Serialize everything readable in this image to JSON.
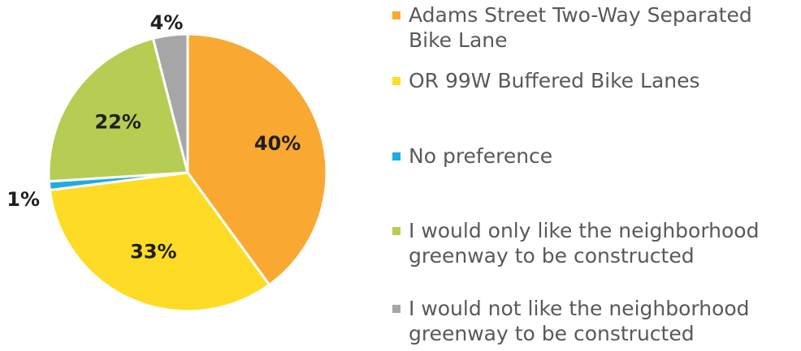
{
  "chart_data": {
    "type": "pie",
    "title": "",
    "slices": [
      {
        "label": "Adams Street Two-Way Separated\nBike Lane",
        "value": 40,
        "value_label": "40%",
        "color": "#F9A932"
      },
      {
        "label": "OR 99W Buffered Bike Lanes",
        "value": 33,
        "value_label": "33%",
        "color": "#FEDC25"
      },
      {
        "label": "No preference",
        "value": 1,
        "value_label": "1%",
        "color": "#1FACE3"
      },
      {
        "label": "I would only like the neighborhood\ngreenway to be constructed",
        "value": 22,
        "value_label": "22%",
        "color": "#B5CD52"
      },
      {
        "label": "I would not like the neighborhood\ngreenway to be constructed",
        "value": 4,
        "value_label": "4%",
        "color": "#A6A6A6"
      }
    ],
    "start_angle_deg": 0,
    "direction": "clockwise",
    "legend_position": "right"
  }
}
